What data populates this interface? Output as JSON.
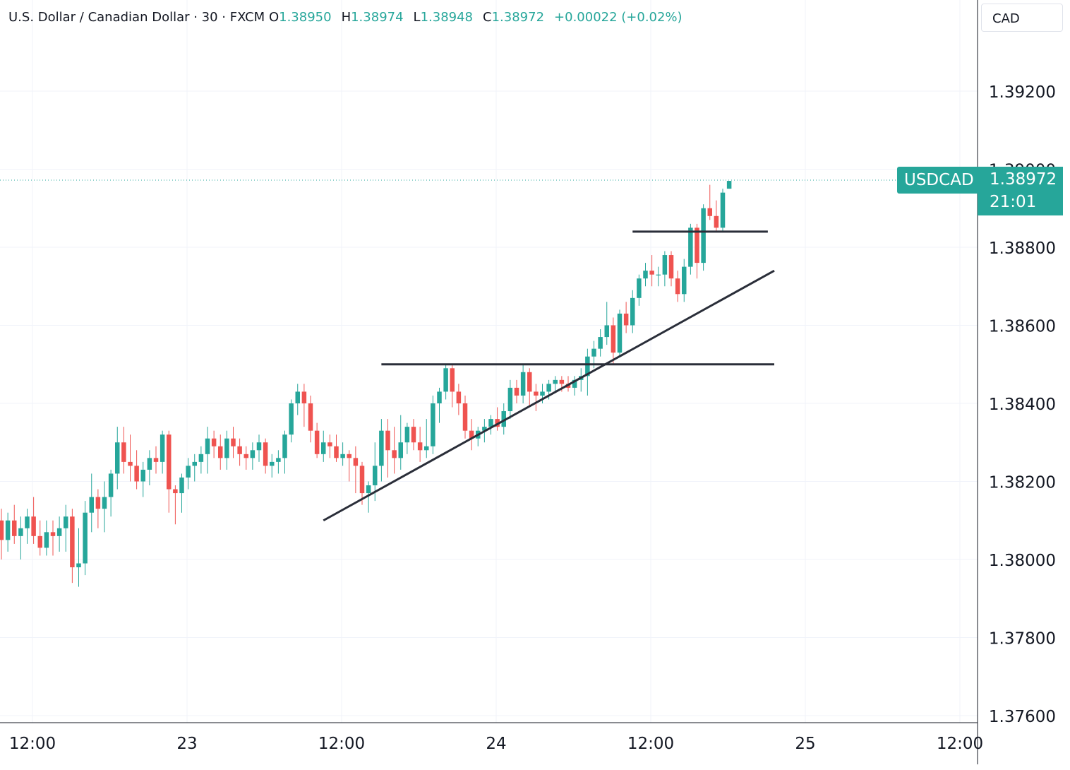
{
  "legend": {
    "title": "U.S. Dollar / Canadian Dollar · 30 · FXCM",
    "open_label": "O",
    "open": "1.38950",
    "high_label": "H",
    "high": "1.38974",
    "low_label": "L",
    "low": "1.38948",
    "close_label": "C",
    "close": "1.38972",
    "change": "+0.00022 (+0.02%)"
  },
  "currency": "CAD",
  "last_price": {
    "symbol": "USDCAD",
    "price": "1.38972",
    "countdown": "21:01"
  },
  "colors": {
    "up": "#26a69a",
    "down": "#ef5350",
    "grid": "#f0f3fa",
    "axis": "#131722",
    "drawing": "#2a2e39"
  },
  "chart_data": {
    "type": "candlestick",
    "interval_minutes": 30,
    "ylim": [
      1.3757,
      1.3942
    ],
    "y_ticks": [
      1.376,
      1.378,
      1.38,
      1.382,
      1.384,
      1.386,
      1.388,
      1.392
    ],
    "y_tick_labels": [
      "1.37600",
      "1.37800",
      "1.38000",
      "1.38200",
      "1.38400",
      "1.38600",
      "1.38800",
      "1.39200"
    ],
    "x_ticks": [
      "22 12:00",
      "23 00:00",
      "23 12:00",
      "24 00:00",
      "24 12:00",
      "25 00:00",
      "25 12:00"
    ],
    "x_tick_labels": [
      "12:00",
      "23",
      "12:00",
      "24",
      "12:00",
      "25",
      "12:00"
    ],
    "first_candle_time": "22 Jan 12:00",
    "candles": [
      [
        1.381,
        1.3813,
        1.38,
        1.3805
      ],
      [
        1.3805,
        1.3812,
        1.3802,
        1.381
      ],
      [
        1.381,
        1.3814,
        1.3804,
        1.3806
      ],
      [
        1.3806,
        1.3811,
        1.38,
        1.3808
      ],
      [
        1.3808,
        1.3813,
        1.3804,
        1.3811
      ],
      [
        1.3811,
        1.3816,
        1.3804,
        1.3806
      ],
      [
        1.3806,
        1.381,
        1.3801,
        1.3803
      ],
      [
        1.3803,
        1.381,
        1.3801,
        1.3807
      ],
      [
        1.3807,
        1.381,
        1.3801,
        1.3806
      ],
      [
        1.3806,
        1.3811,
        1.3802,
        1.3808
      ],
      [
        1.3808,
        1.3814,
        1.3802,
        1.3811
      ],
      [
        1.3811,
        1.3813,
        1.3794,
        1.3798
      ],
      [
        1.3798,
        1.3808,
        1.3793,
        1.3799
      ],
      [
        1.3799,
        1.3815,
        1.3796,
        1.3812
      ],
      [
        1.3812,
        1.3822,
        1.3807,
        1.3816
      ],
      [
        1.3816,
        1.3818,
        1.3808,
        1.3813
      ],
      [
        1.3813,
        1.382,
        1.3807,
        1.3816
      ],
      [
        1.3816,
        1.3823,
        1.3811,
        1.3822
      ],
      [
        1.3822,
        1.3834,
        1.3818,
        1.383
      ],
      [
        1.383,
        1.3834,
        1.3822,
        1.3825
      ],
      [
        1.3825,
        1.3832,
        1.382,
        1.3824
      ],
      [
        1.3824,
        1.3828,
        1.3818,
        1.382
      ],
      [
        1.382,
        1.3825,
        1.3816,
        1.3823
      ],
      [
        1.3823,
        1.3828,
        1.3819,
        1.3826
      ],
      [
        1.3826,
        1.3829,
        1.3822,
        1.3825
      ],
      [
        1.3825,
        1.3833,
        1.3822,
        1.3832
      ],
      [
        1.3832,
        1.3833,
        1.3812,
        1.3818
      ],
      [
        1.3818,
        1.3819,
        1.3809,
        1.3817
      ],
      [
        1.3817,
        1.3822,
        1.3812,
        1.3821
      ],
      [
        1.3821,
        1.3826,
        1.3818,
        1.3824
      ],
      [
        1.3824,
        1.3827,
        1.382,
        1.3825
      ],
      [
        1.3825,
        1.3829,
        1.3822,
        1.3827
      ],
      [
        1.3827,
        1.3834,
        1.3822,
        1.3831
      ],
      [
        1.3831,
        1.3833,
        1.3826,
        1.3829
      ],
      [
        1.3829,
        1.3832,
        1.3823,
        1.3826
      ],
      [
        1.3826,
        1.3833,
        1.3823,
        1.3831
      ],
      [
        1.3831,
        1.3834,
        1.3826,
        1.3829
      ],
      [
        1.3829,
        1.3831,
        1.3824,
        1.3827
      ],
      [
        1.3827,
        1.3829,
        1.3823,
        1.3826
      ],
      [
        1.3826,
        1.383,
        1.3823,
        1.3828
      ],
      [
        1.3828,
        1.3832,
        1.3825,
        1.383
      ],
      [
        1.383,
        1.3831,
        1.3822,
        1.3824
      ],
      [
        1.3824,
        1.3827,
        1.3821,
        1.3825
      ],
      [
        1.3825,
        1.3828,
        1.3822,
        1.3826
      ],
      [
        1.3826,
        1.3833,
        1.3822,
        1.3832
      ],
      [
        1.3832,
        1.3841,
        1.383,
        1.384
      ],
      [
        1.384,
        1.3845,
        1.3837,
        1.3843
      ],
      [
        1.3843,
        1.3845,
        1.3834,
        1.384
      ],
      [
        1.384,
        1.3842,
        1.383,
        1.3833
      ],
      [
        1.3833,
        1.3835,
        1.3826,
        1.3827
      ],
      [
        1.3827,
        1.3833,
        1.3825,
        1.383
      ],
      [
        1.383,
        1.3832,
        1.3826,
        1.3829
      ],
      [
        1.3829,
        1.3832,
        1.3825,
        1.3826
      ],
      [
        1.3826,
        1.383,
        1.3824,
        1.3827
      ],
      [
        1.3827,
        1.3828,
        1.382,
        1.3826
      ],
      [
        1.3826,
        1.3829,
        1.3817,
        1.3824
      ],
      [
        1.3824,
        1.3825,
        1.3814,
        1.3817
      ],
      [
        1.3817,
        1.382,
        1.3812,
        1.3819
      ],
      [
        1.3819,
        1.383,
        1.3815,
        1.3824
      ],
      [
        1.3824,
        1.3836,
        1.382,
        1.3833
      ],
      [
        1.3833,
        1.3836,
        1.3821,
        1.3828
      ],
      [
        1.3828,
        1.3834,
        1.3822,
        1.3826
      ],
      [
        1.3826,
        1.3837,
        1.3823,
        1.383
      ],
      [
        1.383,
        1.3835,
        1.3827,
        1.3834
      ],
      [
        1.3834,
        1.3836,
        1.3828,
        1.383
      ],
      [
        1.383,
        1.3834,
        1.3825,
        1.3828
      ],
      [
        1.3828,
        1.3836,
        1.3826,
        1.3829
      ],
      [
        1.3829,
        1.3842,
        1.3827,
        1.384
      ],
      [
        1.384,
        1.3844,
        1.3835,
        1.3843
      ],
      [
        1.3843,
        1.385,
        1.3841,
        1.3849
      ],
      [
        1.3849,
        1.385,
        1.3839,
        1.3843
      ],
      [
        1.3843,
        1.3845,
        1.3837,
        1.384
      ],
      [
        1.384,
        1.3842,
        1.3831,
        1.3833
      ],
      [
        1.3833,
        1.3836,
        1.3828,
        1.3831
      ],
      [
        1.3831,
        1.3834,
        1.3829,
        1.3833
      ],
      [
        1.3833,
        1.3836,
        1.383,
        1.3834
      ],
      [
        1.3834,
        1.3837,
        1.3832,
        1.3836
      ],
      [
        1.3836,
        1.3839,
        1.3833,
        1.3834
      ],
      [
        1.3834,
        1.384,
        1.3832,
        1.3838
      ],
      [
        1.3838,
        1.3846,
        1.3836,
        1.3844
      ],
      [
        1.3844,
        1.3846,
        1.384,
        1.3842
      ],
      [
        1.3842,
        1.385,
        1.384,
        1.3848
      ],
      [
        1.3848,
        1.3849,
        1.3839,
        1.3843
      ],
      [
        1.3843,
        1.3845,
        1.3838,
        1.3842
      ],
      [
        1.3842,
        1.3845,
        1.384,
        1.3843
      ],
      [
        1.3843,
        1.3846,
        1.3841,
        1.3845
      ],
      [
        1.3845,
        1.3847,
        1.3843,
        1.3846
      ],
      [
        1.3846,
        1.3847,
        1.3843,
        1.3845
      ],
      [
        1.3845,
        1.3847,
        1.3843,
        1.3844
      ],
      [
        1.3844,
        1.3847,
        1.3842,
        1.3846
      ],
      [
        1.3846,
        1.3849,
        1.3843,
        1.3847
      ],
      [
        1.3847,
        1.3854,
        1.3842,
        1.3852
      ],
      [
        1.3852,
        1.3856,
        1.3849,
        1.3854
      ],
      [
        1.3854,
        1.3859,
        1.3852,
        1.3857
      ],
      [
        1.3857,
        1.3866,
        1.3855,
        1.386
      ],
      [
        1.386,
        1.3862,
        1.385,
        1.3853
      ],
      [
        1.3853,
        1.3864,
        1.3852,
        1.3863
      ],
      [
        1.3863,
        1.3866,
        1.3858,
        1.386
      ],
      [
        1.386,
        1.3869,
        1.3858,
        1.3867
      ],
      [
        1.3867,
        1.3873,
        1.3865,
        1.3872
      ],
      [
        1.3872,
        1.3876,
        1.387,
        1.3874
      ],
      [
        1.3874,
        1.3878,
        1.387,
        1.3873
      ],
      [
        1.3873,
        1.3875,
        1.387,
        1.3873
      ],
      [
        1.3873,
        1.3879,
        1.387,
        1.3878
      ],
      [
        1.3878,
        1.3879,
        1.387,
        1.3872
      ],
      [
        1.3872,
        1.3874,
        1.3866,
        1.3868
      ],
      [
        1.3868,
        1.3877,
        1.3866,
        1.3875
      ],
      [
        1.3875,
        1.3886,
        1.3873,
        1.3885
      ],
      [
        1.3885,
        1.3886,
        1.3872,
        1.3876
      ],
      [
        1.3876,
        1.3891,
        1.3874,
        1.389
      ],
      [
        1.389,
        1.3896,
        1.3887,
        1.3888
      ],
      [
        1.3888,
        1.3892,
        1.3884,
        1.3885
      ],
      [
        1.3885,
        1.3895,
        1.3884,
        1.3894
      ],
      [
        1.3895,
        1.3897,
        1.3895,
        1.3897
      ]
    ],
    "drawings": [
      {
        "type": "trendline",
        "from": [
          "23 Jan 13:00",
          1.381
        ],
        "to": [
          "25 Jan 00:00",
          1.3874
        ]
      },
      {
        "type": "horizontal_segment",
        "price": 1.385,
        "from": "23 Jan 17:30",
        "to": "25 Jan 00:00"
      },
      {
        "type": "horizontal_segment",
        "price": 1.3884,
        "from": "24 Jan 13:00",
        "to": "24 Jan 23:30"
      }
    ],
    "last_price_line": 1.38972
  }
}
